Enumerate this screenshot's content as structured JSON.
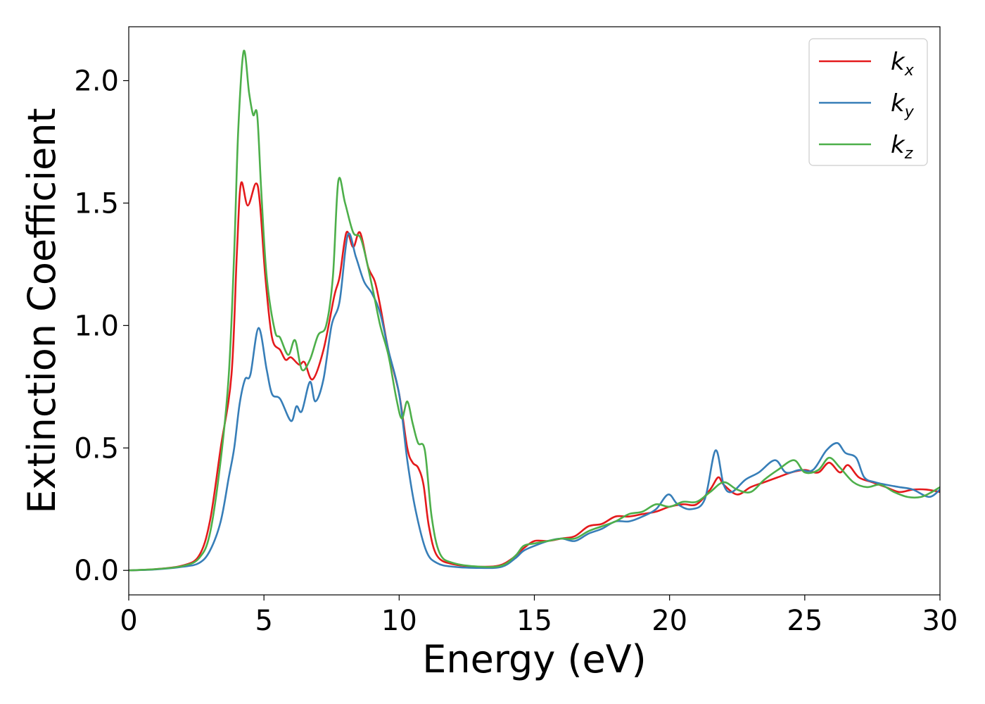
{
  "chart_data": {
    "type": "line",
    "title": "",
    "xlabel": "Energy (eV)",
    "ylabel": "Extinction Coefficient",
    "xlim": [
      0,
      30
    ],
    "ylim": [
      -0.1,
      2.22
    ],
    "xticks": [
      0,
      5,
      10,
      15,
      20,
      25,
      30
    ],
    "xtick_labels": [
      "0",
      "5",
      "10",
      "15",
      "20",
      "25",
      "30"
    ],
    "yticks": [
      0.0,
      0.5,
      1.0,
      1.5,
      2.0
    ],
    "ytick_labels": [
      "0.0",
      "0.5",
      "1.0",
      "1.5",
      "2.0"
    ],
    "grid": false,
    "legend_position": "top-right",
    "series": [
      {
        "name": "k",
        "subscript": "x",
        "color": "#e41a1c",
        "points": [
          [
            0,
            0
          ],
          [
            1,
            0.005
          ],
          [
            2,
            0.02
          ],
          [
            2.6,
            0.06
          ],
          [
            3,
            0.2
          ],
          [
            3.4,
            0.5
          ],
          [
            3.8,
            0.8
          ],
          [
            4.0,
            1.3
          ],
          [
            4.15,
            1.58
          ],
          [
            4.4,
            1.49
          ],
          [
            4.7,
            1.58
          ],
          [
            4.85,
            1.5
          ],
          [
            5.05,
            1.2
          ],
          [
            5.3,
            0.95
          ],
          [
            5.6,
            0.9
          ],
          [
            5.8,
            0.86
          ],
          [
            6.0,
            0.87
          ],
          [
            6.3,
            0.84
          ],
          [
            6.5,
            0.85
          ],
          [
            6.8,
            0.78
          ],
          [
            7.2,
            0.9
          ],
          [
            7.6,
            1.12
          ],
          [
            7.8,
            1.2
          ],
          [
            8.05,
            1.38
          ],
          [
            8.3,
            1.32
          ],
          [
            8.55,
            1.38
          ],
          [
            8.85,
            1.24
          ],
          [
            9.1,
            1.18
          ],
          [
            9.3,
            1.08
          ],
          [
            9.6,
            0.9
          ],
          [
            10.0,
            0.72
          ],
          [
            10.3,
            0.5
          ],
          [
            10.5,
            0.44
          ],
          [
            10.7,
            0.42
          ],
          [
            10.9,
            0.35
          ],
          [
            11.1,
            0.18
          ],
          [
            11.4,
            0.06
          ],
          [
            12,
            0.025
          ],
          [
            13,
            0.015
          ],
          [
            13.7,
            0.02
          ],
          [
            14.2,
            0.05
          ],
          [
            14.6,
            0.09
          ],
          [
            15,
            0.12
          ],
          [
            15.5,
            0.12
          ],
          [
            16,
            0.13
          ],
          [
            16.5,
            0.14
          ],
          [
            17,
            0.18
          ],
          [
            17.5,
            0.19
          ],
          [
            18,
            0.22
          ],
          [
            18.5,
            0.22
          ],
          [
            19,
            0.23
          ],
          [
            19.5,
            0.24
          ],
          [
            20,
            0.26
          ],
          [
            20.5,
            0.27
          ],
          [
            21,
            0.27
          ],
          [
            21.5,
            0.33
          ],
          [
            21.8,
            0.38
          ],
          [
            22,
            0.35
          ],
          [
            22.5,
            0.31
          ],
          [
            23,
            0.34
          ],
          [
            23.5,
            0.36
          ],
          [
            24,
            0.38
          ],
          [
            24.5,
            0.4
          ],
          [
            25,
            0.41
          ],
          [
            25.5,
            0.4
          ],
          [
            25.9,
            0.44
          ],
          [
            26.3,
            0.4
          ],
          [
            26.6,
            0.43
          ],
          [
            27,
            0.38
          ],
          [
            27.5,
            0.36
          ],
          [
            28,
            0.34
          ],
          [
            28.5,
            0.32
          ],
          [
            29,
            0.33
          ],
          [
            29.5,
            0.33
          ],
          [
            30,
            0.32
          ]
        ]
      },
      {
        "name": "k",
        "subscript": "y",
        "color": "#377eb8",
        "points": [
          [
            0,
            0
          ],
          [
            1,
            0.004
          ],
          [
            2,
            0.015
          ],
          [
            2.6,
            0.03
          ],
          [
            3.0,
            0.08
          ],
          [
            3.4,
            0.2
          ],
          [
            3.7,
            0.38
          ],
          [
            3.9,
            0.5
          ],
          [
            4.1,
            0.68
          ],
          [
            4.3,
            0.78
          ],
          [
            4.5,
            0.8
          ],
          [
            4.8,
            0.99
          ],
          [
            5.1,
            0.82
          ],
          [
            5.3,
            0.72
          ],
          [
            5.6,
            0.7
          ],
          [
            6.0,
            0.61
          ],
          [
            6.2,
            0.67
          ],
          [
            6.4,
            0.65
          ],
          [
            6.7,
            0.77
          ],
          [
            6.9,
            0.69
          ],
          [
            7.2,
            0.78
          ],
          [
            7.5,
            1.0
          ],
          [
            7.8,
            1.1
          ],
          [
            8.1,
            1.37
          ],
          [
            8.4,
            1.28
          ],
          [
            8.7,
            1.18
          ],
          [
            9.0,
            1.13
          ],
          [
            9.3,
            1.05
          ],
          [
            9.6,
            0.9
          ],
          [
            10.0,
            0.72
          ],
          [
            10.3,
            0.45
          ],
          [
            10.6,
            0.25
          ],
          [
            11.0,
            0.08
          ],
          [
            11.4,
            0.03
          ],
          [
            12,
            0.015
          ],
          [
            13,
            0.01
          ],
          [
            13.8,
            0.015
          ],
          [
            14.3,
            0.05
          ],
          [
            14.6,
            0.08
          ],
          [
            15,
            0.1
          ],
          [
            15.5,
            0.12
          ],
          [
            16,
            0.13
          ],
          [
            16.5,
            0.12
          ],
          [
            17,
            0.15
          ],
          [
            17.5,
            0.17
          ],
          [
            18,
            0.2
          ],
          [
            18.5,
            0.2
          ],
          [
            19,
            0.22
          ],
          [
            19.5,
            0.25
          ],
          [
            19.95,
            0.31
          ],
          [
            20.3,
            0.27
          ],
          [
            20.8,
            0.25
          ],
          [
            21.3,
            0.29
          ],
          [
            21.7,
            0.49
          ],
          [
            22.0,
            0.35
          ],
          [
            22.3,
            0.32
          ],
          [
            22.8,
            0.37
          ],
          [
            23.3,
            0.4
          ],
          [
            23.9,
            0.45
          ],
          [
            24.3,
            0.4
          ],
          [
            24.8,
            0.41
          ],
          [
            25.3,
            0.41
          ],
          [
            25.8,
            0.49
          ],
          [
            26.2,
            0.52
          ],
          [
            26.5,
            0.48
          ],
          [
            26.9,
            0.46
          ],
          [
            27.2,
            0.38
          ],
          [
            27.6,
            0.36
          ],
          [
            28,
            0.35
          ],
          [
            28.5,
            0.34
          ],
          [
            29,
            0.33
          ],
          [
            29.6,
            0.3
          ],
          [
            30,
            0.33
          ]
        ]
      },
      {
        "name": "k",
        "subscript": "z",
        "color": "#4daf4a",
        "points": [
          [
            0,
            0
          ],
          [
            1,
            0.005
          ],
          [
            2,
            0.018
          ],
          [
            2.6,
            0.05
          ],
          [
            3.0,
            0.15
          ],
          [
            3.4,
            0.45
          ],
          [
            3.7,
            0.8
          ],
          [
            3.9,
            1.3
          ],
          [
            4.05,
            1.8
          ],
          [
            4.25,
            2.12
          ],
          [
            4.45,
            1.95
          ],
          [
            4.6,
            1.86
          ],
          [
            4.75,
            1.86
          ],
          [
            4.9,
            1.55
          ],
          [
            5.1,
            1.2
          ],
          [
            5.4,
            0.98
          ],
          [
            5.6,
            0.95
          ],
          [
            5.9,
            0.88
          ],
          [
            6.15,
            0.94
          ],
          [
            6.4,
            0.82
          ],
          [
            6.7,
            0.86
          ],
          [
            7.0,
            0.96
          ],
          [
            7.3,
            1.0
          ],
          [
            7.55,
            1.2
          ],
          [
            7.75,
            1.59
          ],
          [
            8.0,
            1.5
          ],
          [
            8.3,
            1.38
          ],
          [
            8.6,
            1.35
          ],
          [
            9.0,
            1.16
          ],
          [
            9.3,
            1.0
          ],
          [
            9.6,
            0.88
          ],
          [
            9.9,
            0.7
          ],
          [
            10.1,
            0.62
          ],
          [
            10.3,
            0.69
          ],
          [
            10.5,
            0.6
          ],
          [
            10.7,
            0.52
          ],
          [
            10.95,
            0.49
          ],
          [
            11.2,
            0.22
          ],
          [
            11.5,
            0.07
          ],
          [
            12,
            0.03
          ],
          [
            13,
            0.015
          ],
          [
            13.8,
            0.02
          ],
          [
            14.3,
            0.06
          ],
          [
            14.6,
            0.1
          ],
          [
            15,
            0.11
          ],
          [
            15.5,
            0.12
          ],
          [
            16,
            0.13
          ],
          [
            16.5,
            0.13
          ],
          [
            17,
            0.16
          ],
          [
            17.5,
            0.18
          ],
          [
            18,
            0.2
          ],
          [
            18.5,
            0.23
          ],
          [
            19,
            0.24
          ],
          [
            19.5,
            0.27
          ],
          [
            20,
            0.26
          ],
          [
            20.5,
            0.28
          ],
          [
            21,
            0.28
          ],
          [
            21.5,
            0.32
          ],
          [
            22,
            0.36
          ],
          [
            22.5,
            0.33
          ],
          [
            23,
            0.32
          ],
          [
            23.5,
            0.37
          ],
          [
            24,
            0.41
          ],
          [
            24.6,
            0.45
          ],
          [
            25.0,
            0.4
          ],
          [
            25.5,
            0.41
          ],
          [
            25.9,
            0.46
          ],
          [
            26.3,
            0.42
          ],
          [
            26.8,
            0.36
          ],
          [
            27.3,
            0.34
          ],
          [
            27.8,
            0.35
          ],
          [
            28.3,
            0.32
          ],
          [
            28.8,
            0.3
          ],
          [
            29.3,
            0.3
          ],
          [
            29.7,
            0.32
          ],
          [
            30,
            0.34
          ]
        ]
      }
    ]
  }
}
